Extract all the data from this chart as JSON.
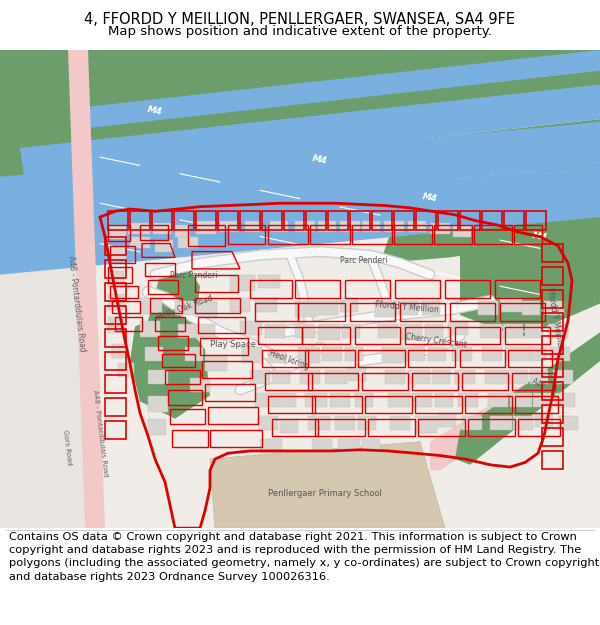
{
  "title_line1": "4, FFORDD Y MEILLION, PENLLERGAER, SWANSEA, SA4 9FE",
  "title_line2": "Map shows position and indicative extent of the property.",
  "title_fontsize": 10.5,
  "subtitle_fontsize": 9.5,
  "footer_text": "Contains OS data © Crown copyright and database right 2021. This information is subject to Crown copyright and database rights 2023 and is reproduced with the permission of HM Land Registry. The polygons (including the associated geometry, namely x, y co-ordinates) are subject to Crown copyright and database rights 2023 Ordnance Survey 100026316.",
  "footer_fontsize": 8.2,
  "map_bg": "#f0ede8",
  "road_pink": "#f2c8c8",
  "motorway_blue": "#7ab0e0",
  "dark_green": "#6b9e6b",
  "building_gray": "#d8d5d0",
  "red_outline": "#e00000",
  "school_tan": "#d4c9b0",
  "white": "#ffffff",
  "road_gray": "#e0ddd8",
  "light_white": "#f8f8f8"
}
